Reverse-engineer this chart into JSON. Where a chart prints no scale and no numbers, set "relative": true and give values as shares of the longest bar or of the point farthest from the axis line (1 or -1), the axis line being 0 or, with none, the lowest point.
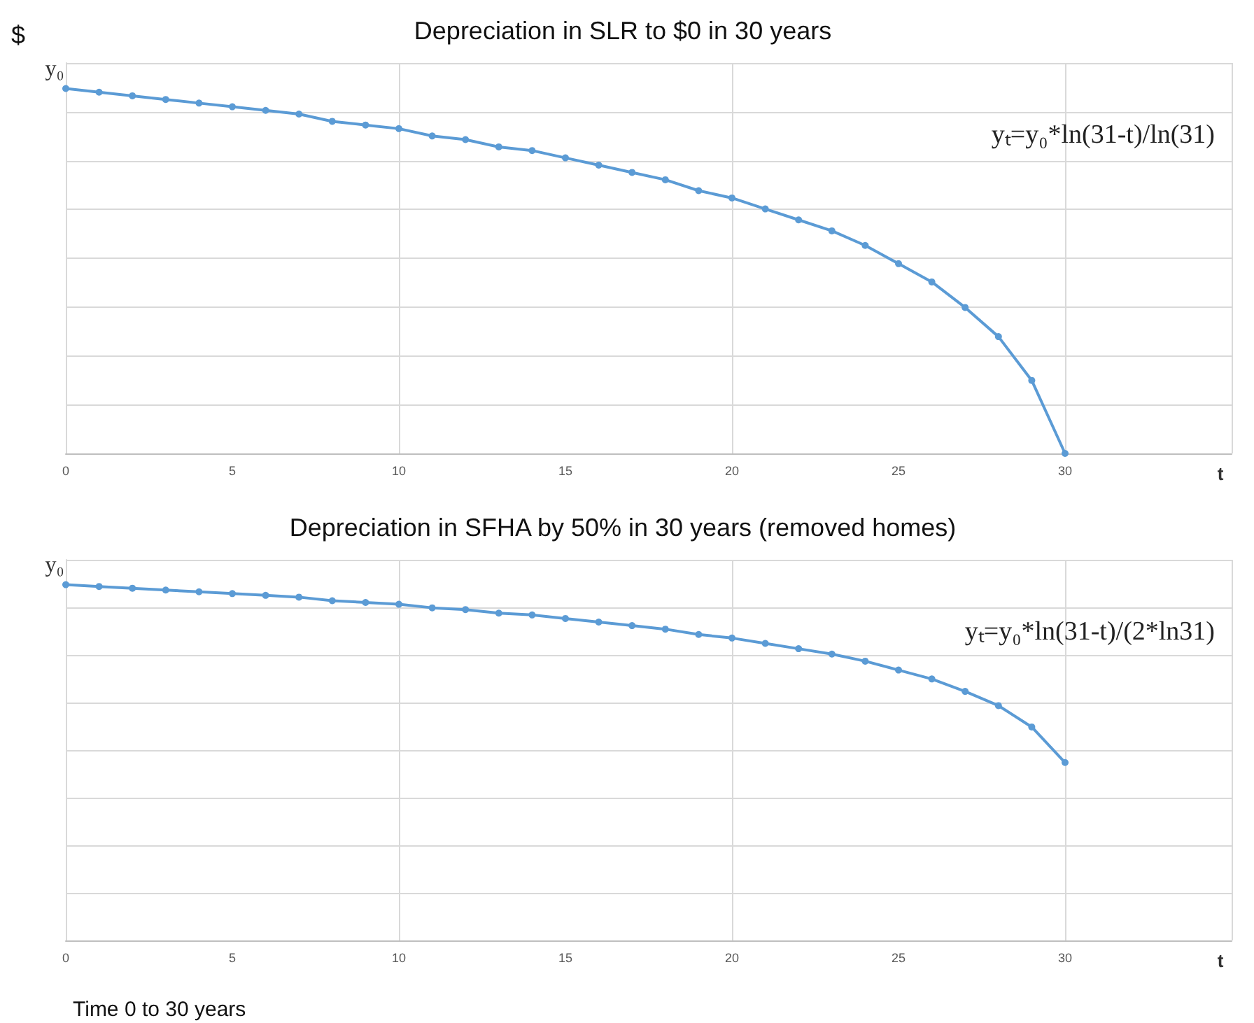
{
  "chart_data": [
    {
      "type": "line",
      "title": "Depreciation in SLR to $0 in 30 years",
      "ylabel": "$",
      "xlabel": "t",
      "relative": true,
      "x": [
        0,
        1,
        2,
        3,
        4,
        5,
        6,
        7,
        8,
        9,
        10,
        11,
        12,
        13,
        14,
        15,
        16,
        17,
        18,
        19,
        20,
        21,
        22,
        23,
        24,
        25,
        26,
        27,
        28,
        29,
        30
      ],
      "series": [
        {
          "color": "#5b9bd5",
          "values": [
            1,
            0.99,
            0.98,
            0.97,
            0.96,
            0.95,
            0.94,
            0.93,
            0.91,
            0.9,
            0.89,
            0.87,
            0.86,
            0.84,
            0.83,
            0.81,
            0.79,
            0.77,
            0.75,
            0.72,
            0.7,
            0.67,
            0.64,
            0.61,
            0.57,
            0.52,
            0.47,
            0.4,
            0.32,
            0.2,
            0
          ]
        }
      ],
      "xlim": [
        0,
        35
      ],
      "xticks": [
        0,
        5,
        10,
        15,
        20,
        25,
        30
      ],
      "grid": true,
      "marker": "circle",
      "line_style": "solid",
      "annotations": [
        {
          "text": "y₀",
          "x": 0,
          "y": 1
        },
        "yₜ=y₀*ln(31-t)/ln(31)"
      ]
    },
    {
      "type": "line",
      "title": "Depreciation in SFHA by 50% in 30 years (removed homes)",
      "xlabel": "t",
      "relative": true,
      "x": [
        0,
        1,
        2,
        3,
        4,
        5,
        6,
        7,
        8,
        9,
        10,
        11,
        12,
        13,
        14,
        15,
        16,
        17,
        18,
        19,
        20,
        21,
        22,
        23,
        24,
        25,
        26,
        27,
        28,
        29,
        30
      ],
      "series": [
        {
          "color": "#5b9bd5",
          "values": [
            1,
            0.995,
            0.99,
            0.985,
            0.98,
            0.975,
            0.97,
            0.965,
            0.955,
            0.95,
            0.945,
            0.935,
            0.93,
            0.92,
            0.915,
            0.905,
            0.895,
            0.885,
            0.875,
            0.86,
            0.85,
            0.835,
            0.82,
            0.805,
            0.785,
            0.76,
            0.735,
            0.7,
            0.66,
            0.6,
            0.5
          ]
        }
      ],
      "xlim": [
        0,
        35
      ],
      "xticks": [
        0,
        5,
        10,
        15,
        20,
        25,
        30
      ],
      "grid": true,
      "marker": "circle",
      "line_style": "solid",
      "annotations": [
        {
          "text": "y₀",
          "x": 0,
          "y": 1
        },
        "yₜ=y₀*ln(31-t)/(2*ln31)",
        "Time 0 to 30 years"
      ]
    }
  ]
}
